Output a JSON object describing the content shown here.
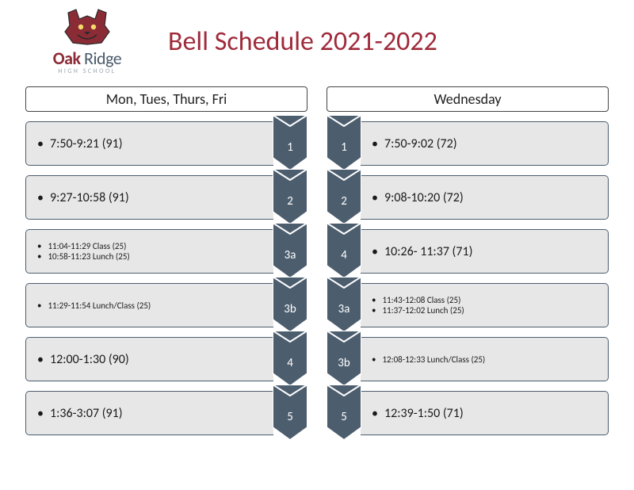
{
  "logo": {
    "line": "Oak Ridge",
    "oak": "Oak ",
    "ridge": "Ridge",
    "sub": "HIGH SCHOOL"
  },
  "title": "Bell Schedule 2021-2022",
  "colors": {
    "chevron_fill": "#4c5d6e",
    "chevron_stroke": "#ffffff",
    "card_bg": "#e7e7e7",
    "card_border": "#4c5d6e",
    "title_color": "#9f2a3a",
    "logo_primary": "#8b2b35",
    "logo_secondary": "#495a6b"
  },
  "left": {
    "header": "Mon, Tues, Thurs, Fri",
    "rows": [
      {
        "period": "1",
        "lines": [
          "7:50-9:21 (91)"
        ],
        "small": false
      },
      {
        "period": "2",
        "lines": [
          "9:27-10:58 (91)"
        ],
        "small": false
      },
      {
        "period": "3a",
        "lines": [
          "11:04-11:29 Class (25)",
          "10:58-11:23 Lunch (25)"
        ],
        "small": true
      },
      {
        "period": "3b",
        "lines": [
          "11:29-11:54 Lunch/Class (25)"
        ],
        "small": true
      },
      {
        "period": "4",
        "lines": [
          "12:00-1:30 (90)"
        ],
        "small": false
      },
      {
        "period": "5",
        "lines": [
          "1:36-3:07 (91)"
        ],
        "small": false
      }
    ]
  },
  "right": {
    "header": "Wednesday",
    "rows": [
      {
        "period": "1",
        "lines": [
          "7:50-9:02 (72)"
        ],
        "small": false
      },
      {
        "period": "2",
        "lines": [
          "9:08-10:20 (72)"
        ],
        "small": false
      },
      {
        "period": "4",
        "lines": [
          "10:26- 11:37 (71)"
        ],
        "small": false
      },
      {
        "period": "3a",
        "lines": [
          "11:43-12:08 Class (25)",
          "11:37-12:02 Lunch (25)"
        ],
        "small": true
      },
      {
        "period": "3b",
        "lines": [
          "12:08-12:33 Lunch/Class (25)"
        ],
        "small": true
      },
      {
        "period": "5",
        "lines": [
          "12:39-1:50 (71)"
        ],
        "small": false
      }
    ]
  }
}
